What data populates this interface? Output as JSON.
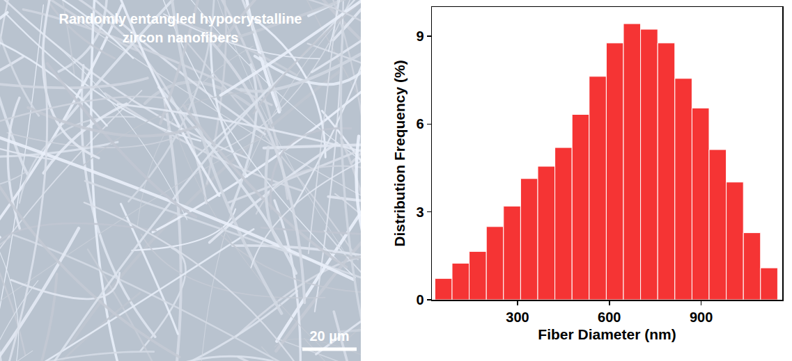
{
  "image_panel": {
    "caption": "Randomly entangled hypocrystalline zircon nanofibers",
    "scale_bar": "20 µm"
  },
  "chart_data": {
    "type": "histogram",
    "bins": [
      30,
      86,
      142,
      198,
      254,
      310,
      366,
      422,
      478,
      534,
      590,
      646,
      702,
      758,
      814,
      870,
      926,
      982,
      1038,
      1094,
      1150
    ],
    "values": [
      0.73,
      1.25,
      1.65,
      2.5,
      3.2,
      4.14,
      4.56,
      5.2,
      6.33,
      7.63,
      8.77,
      9.43,
      9.24,
      8.77,
      7.56,
      6.55,
      5.13,
      4.02,
      2.29,
      1.09
    ],
    "color": "#f53434",
    "x_label": "Fiber Diameter (nm)",
    "y_label": "Distribution Frequency (%)",
    "xlim": [
      20,
      1165
    ],
    "xticks": [
      300,
      600,
      900
    ],
    "ylim": [
      0,
      10
    ],
    "yticks": [
      0,
      3,
      6,
      9
    ],
    "grid": false
  }
}
